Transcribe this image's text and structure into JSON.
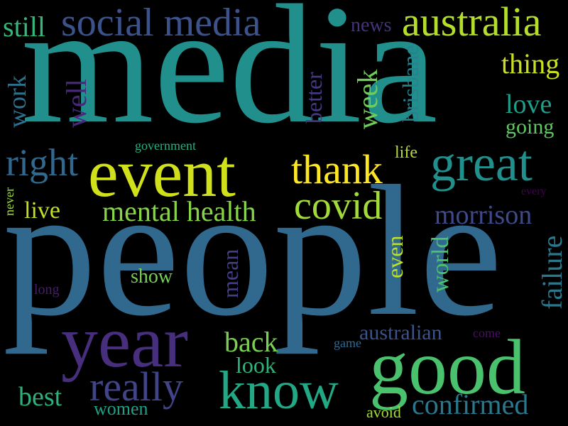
{
  "words": [
    {
      "text": "media",
      "color": "#21908d"
    },
    {
      "text": "people",
      "color": "#31688e"
    },
    {
      "text": "social media",
      "color": "#3b528b"
    },
    {
      "text": "australia",
      "color": "#b5de2b"
    },
    {
      "text": "still",
      "color": "#35b779"
    },
    {
      "text": "news",
      "color": "#46327e"
    },
    {
      "text": "thing",
      "color": "#c8e020"
    },
    {
      "text": "love",
      "color": "#1f9e89"
    },
    {
      "text": "going",
      "color": "#5ec962"
    },
    {
      "text": "brisbane",
      "color": "#26828e"
    },
    {
      "text": "week",
      "color": "#6ece58"
    },
    {
      "text": "better",
      "color": "#443a83"
    },
    {
      "text": "well",
      "color": "#482878"
    },
    {
      "text": "work",
      "color": "#2c728e"
    },
    {
      "text": "government",
      "color": "#29af7f"
    },
    {
      "text": "life",
      "color": "#b5de2b"
    },
    {
      "text": "right",
      "color": "#31688e"
    },
    {
      "text": "event",
      "color": "#d0e11c"
    },
    {
      "text": "thank",
      "color": "#fde725"
    },
    {
      "text": "great",
      "color": "#21908d"
    },
    {
      "text": "every",
      "color": "#440154"
    },
    {
      "text": "never",
      "color": "#a0da39"
    },
    {
      "text": "live",
      "color": "#c2df23"
    },
    {
      "text": "mental health",
      "color": "#86d549"
    },
    {
      "text": "covid",
      "color": "#a2da37"
    },
    {
      "text": "morrison",
      "color": "#3e4a89"
    },
    {
      "text": "even",
      "color": "#bddf26"
    },
    {
      "text": "world",
      "color": "#4ac16d"
    },
    {
      "text": "failure",
      "color": "#2a788e"
    },
    {
      "text": "show",
      "color": "#75d054"
    },
    {
      "text": "mean",
      "color": "#433e85"
    },
    {
      "text": "long",
      "color": "#481a6c"
    },
    {
      "text": "year",
      "color": "#472f7d"
    },
    {
      "text": "back",
      "color": "#7ad151"
    },
    {
      "text": "look",
      "color": "#2fb47c"
    },
    {
      "text": "australian",
      "color": "#3b528b"
    },
    {
      "text": "come",
      "color": "#471063"
    },
    {
      "text": "game",
      "color": "#31688e"
    },
    {
      "text": "good",
      "color": "#4ac16d"
    },
    {
      "text": "know",
      "color": "#22a884"
    },
    {
      "text": "really",
      "color": "#414487"
    },
    {
      "text": "best",
      "color": "#2db27d"
    },
    {
      "text": "women",
      "color": "#1fa187"
    },
    {
      "text": "avoid",
      "color": "#a5db36"
    },
    {
      "text": "confirmed",
      "color": "#2a788e"
    }
  ]
}
